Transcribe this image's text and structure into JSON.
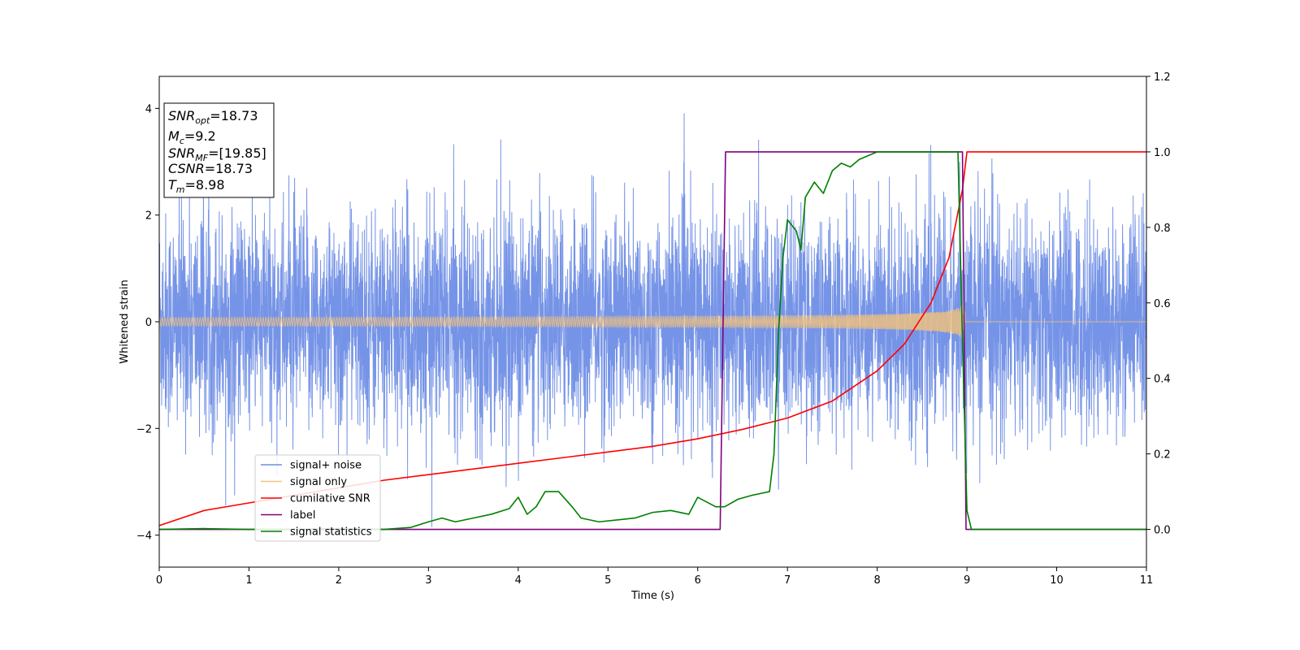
{
  "chart_data": {
    "type": "line",
    "title": "",
    "xlabel": "Time (s)",
    "ylabel": "Whitened strain",
    "xlim": [
      0,
      11
    ],
    "ylim_left": [
      -4.6,
      4.6
    ],
    "ylim_right": [
      -0.1,
      1.2
    ],
    "xticks": [
      0,
      1,
      2,
      3,
      4,
      5,
      6,
      7,
      8,
      9,
      10,
      11
    ],
    "yticks_left": [
      -4,
      -2,
      0,
      2,
      4
    ],
    "yticks_right": [
      "0.0",
      "0.2",
      "0.4",
      "0.6",
      "0.8",
      "1.0",
      "1.2"
    ],
    "grid": false,
    "legend_position": "lower-left",
    "info_box": {
      "lines": [
        {
          "main": "SNR",
          "sub": "opt",
          "rest": "=18.73"
        },
        {
          "main": "M",
          "sub": "c",
          "rest": "=9.2"
        },
        {
          "main": "SNR",
          "sub": "MF",
          "rest": "=[19.85]"
        },
        {
          "main": "CSNR",
          "sub": "",
          "rest": "=18.73"
        },
        {
          "main": "T",
          "sub": "m",
          "rest": "=8.98"
        }
      ]
    },
    "series": [
      {
        "name": "signal+ noise",
        "color": "#6f8ee6",
        "axis": "left",
        "description_kind": "noise_band",
        "noise_std": 1.0,
        "x_range": [
          0,
          11
        ]
      },
      {
        "name": "signal only",
        "color": "#f4c27a",
        "axis": "left",
        "description_kind": "chirp",
        "x_range": [
          0,
          8.98
        ],
        "amplitude_start": 0.08,
        "amplitude_end": 3.0
      },
      {
        "name": "cumilative SNR",
        "color": "#ff0000",
        "axis": "right",
        "x": [
          0,
          0.5,
          1,
          1.5,
          2,
          2.5,
          3,
          3.5,
          4,
          4.5,
          5,
          5.5,
          6,
          6.5,
          7,
          7.5,
          8,
          8.3,
          8.6,
          8.8,
          8.95,
          9.0,
          11
        ],
        "y": [
          0.01,
          0.05,
          0.07,
          0.09,
          0.11,
          0.13,
          0.145,
          0.16,
          0.175,
          0.19,
          0.205,
          0.22,
          0.24,
          0.265,
          0.295,
          0.34,
          0.42,
          0.49,
          0.6,
          0.72,
          0.9,
          1.0,
          1.0
        ]
      },
      {
        "name": "label",
        "color": "#800080",
        "axis": "right",
        "x": [
          0,
          6.25,
          6.31,
          8.95,
          8.99,
          11
        ],
        "y": [
          0,
          0,
          1,
          1,
          0,
          0
        ]
      },
      {
        "name": "signal statistics",
        "color": "#008000",
        "axis": "right",
        "x": [
          0,
          0.5,
          1,
          1.5,
          2,
          2.5,
          2.8,
          3.0,
          3.15,
          3.3,
          3.5,
          3.7,
          3.9,
          4.0,
          4.1,
          4.2,
          4.3,
          4.45,
          4.6,
          4.7,
          4.9,
          5.1,
          5.3,
          5.5,
          5.7,
          5.9,
          6.0,
          6.2,
          6.3,
          6.45,
          6.6,
          6.7,
          6.8,
          6.85,
          6.9,
          6.95,
          7.0,
          7.1,
          7.15,
          7.2,
          7.3,
          7.4,
          7.5,
          7.6,
          7.7,
          7.8,
          8.0,
          8.3,
          8.5,
          8.7,
          8.9,
          8.95,
          9.0,
          9.05,
          11
        ],
        "y": [
          0.0,
          0.002,
          0.0,
          0.0,
          0.002,
          0.0,
          0.005,
          0.02,
          0.03,
          0.02,
          0.03,
          0.04,
          0.055,
          0.085,
          0.04,
          0.06,
          0.1,
          0.1,
          0.06,
          0.03,
          0.02,
          0.025,
          0.03,
          0.045,
          0.05,
          0.04,
          0.085,
          0.06,
          0.06,
          0.08,
          0.09,
          0.095,
          0.1,
          0.2,
          0.52,
          0.72,
          0.82,
          0.79,
          0.74,
          0.88,
          0.92,
          0.89,
          0.95,
          0.97,
          0.96,
          0.98,
          1.0,
          1.0,
          1.0,
          1.0,
          1.0,
          0.5,
          0.05,
          0.0,
          0.0
        ]
      }
    ]
  }
}
